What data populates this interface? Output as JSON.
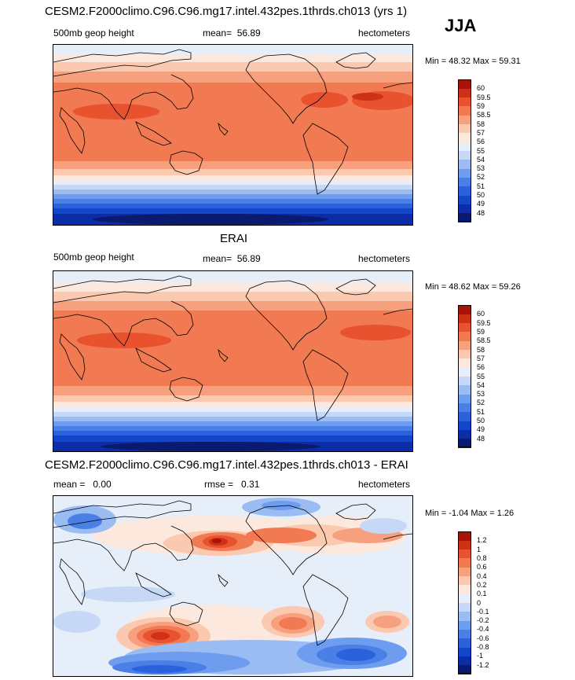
{
  "season": "JJA",
  "chart_data": [
    {
      "type": "heatmap",
      "title": "CESM2.F2000climo.C96.C96.mg17.intel.432pes.1thrds.ch013 (yrs 1)",
      "variable": "500mb geop height",
      "mean_label": "mean=",
      "mean": "56.89",
      "units": "hectometers",
      "min_label": "Min =",
      "min": "48.32",
      "max_label": "Max =",
      "max": "59.31",
      "levels": [
        "48",
        "49",
        "50",
        "51",
        "52",
        "53",
        "54",
        "55",
        "56",
        "57",
        "58",
        "58.5",
        "59",
        "59.5",
        "60"
      ],
      "colors": [
        "#0a1a6e",
        "#0b2ea8",
        "#1446cc",
        "#2a62dc",
        "#4a80e6",
        "#6e9cee",
        "#9bbcf2",
        "#c6d8f6",
        "#e6eefa",
        "#fde8de",
        "#fbc8b0",
        "#f7a07e",
        "#f27a52",
        "#e8522e",
        "#cf3118",
        "#a8140a"
      ]
    },
    {
      "type": "heatmap",
      "title": "ERAI",
      "variable": "500mb geop height",
      "mean_label": "mean=",
      "mean": "56.89",
      "units": "hectometers",
      "min_label": "Min =",
      "min": "48.62",
      "max_label": "Max =",
      "max": "59.26",
      "levels": [
        "48",
        "49",
        "50",
        "51",
        "52",
        "53",
        "54",
        "55",
        "56",
        "57",
        "58",
        "58.5",
        "59",
        "59.5",
        "60"
      ],
      "colors": [
        "#0a1a6e",
        "#0b2ea8",
        "#1446cc",
        "#2a62dc",
        "#4a80e6",
        "#6e9cee",
        "#9bbcf2",
        "#c6d8f6",
        "#e6eefa",
        "#fde8de",
        "#fbc8b0",
        "#f7a07e",
        "#f27a52",
        "#e8522e",
        "#cf3118",
        "#a8140a"
      ]
    },
    {
      "type": "heatmap",
      "title": "CESM2.F2000climo.C96.C96.mg17.intel.432pes.1thrds.ch013 - ERAI",
      "mean_label": "mean =",
      "mean": "0.00",
      "rmse_label": "rmse =",
      "rmse": "0.31",
      "units": "hectometers",
      "min_label": "Min =",
      "min": "-1.04",
      "max_label": "Max =",
      "max": "1.26",
      "levels": [
        "-1.2",
        "-1",
        "-0.8",
        "-0.6",
        "-0.4",
        "-0.2",
        "-0.1",
        "0",
        "0.1",
        "0.2",
        "0.4",
        "0.6",
        "0.8",
        "1",
        "1.2"
      ],
      "colors": [
        "#0a1a6e",
        "#0b2ea8",
        "#1446cc",
        "#2a62dc",
        "#4a80e6",
        "#6e9cee",
        "#9bbcf2",
        "#c6d8f6",
        "#e6eefa",
        "#fde8de",
        "#fbc8b0",
        "#f7a07e",
        "#f27a52",
        "#e8522e",
        "#cf3118",
        "#a8140a"
      ]
    }
  ]
}
